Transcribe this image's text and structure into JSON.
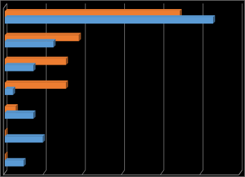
{
  "chart_data": {
    "type": "hbar",
    "categories": [
      null,
      null,
      null,
      null,
      null,
      null,
      null
    ],
    "series": [
      {
        "color": "#ed7d31",
        "values": [
          4.46,
          1.89,
          1.56,
          1.56,
          0.28,
          0.02,
          0.02
        ]
      },
      {
        "color": "#5b9bd5",
        "values": [
          5.31,
          1.24,
          0.73,
          0.21,
          0.73,
          0.97,
          0.48
        ]
      }
    ],
    "xlim": [
      0,
      6
    ],
    "xticks": [
      0,
      1,
      2,
      3,
      4,
      5,
      6
    ],
    "grid": true
  }
}
